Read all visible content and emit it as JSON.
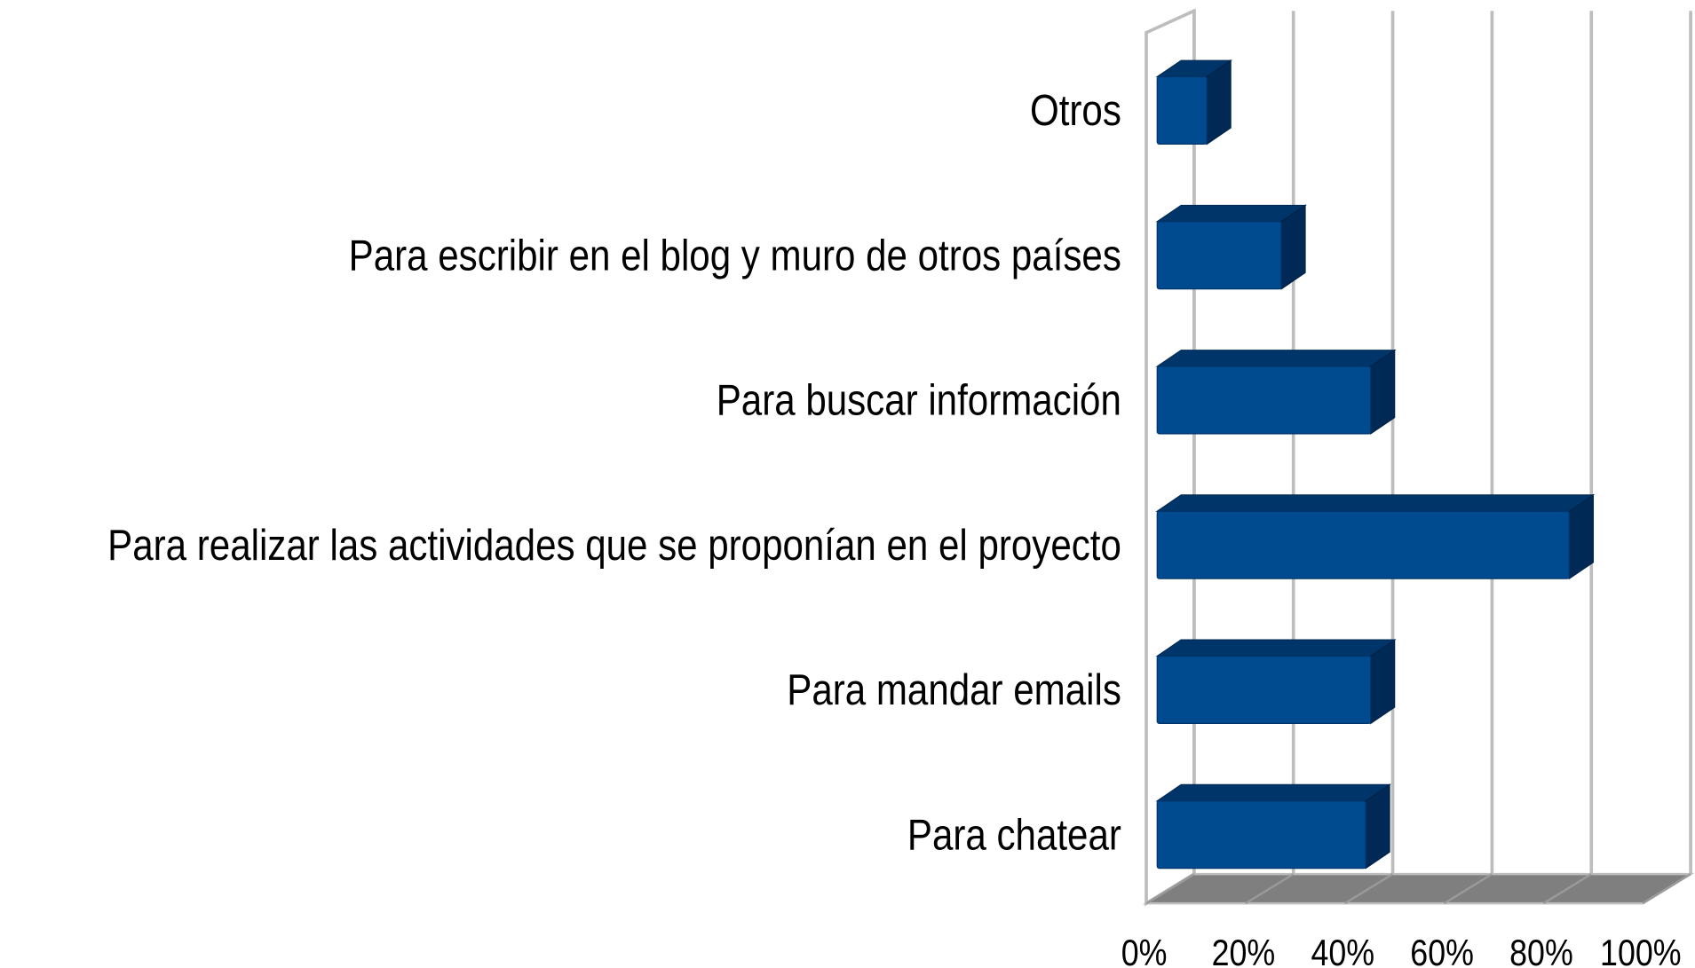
{
  "chart_data": {
    "type": "bar3d",
    "categories": [
      "Otros",
      "Para escribir en el blog y muro de otros países",
      "Para buscar información",
      "Para realizar las actividades que se proponían en el proyecto",
      "Para mandar emails",
      "Para chatear"
    ],
    "values": [
      10,
      25,
      43,
      83,
      43,
      42
    ],
    "color": "#004a8f",
    "xlim": [
      0,
      100
    ],
    "xticks": [
      {
        "value": 0,
        "label": "0%"
      },
      {
        "value": 20,
        "label": "20%"
      },
      {
        "value": 40,
        "label": "40%"
      },
      {
        "value": 60,
        "label": "60%"
      },
      {
        "value": 80,
        "label": "80%"
      },
      {
        "value": 100,
        "label": "100%"
      }
    ],
    "grid": true
  }
}
